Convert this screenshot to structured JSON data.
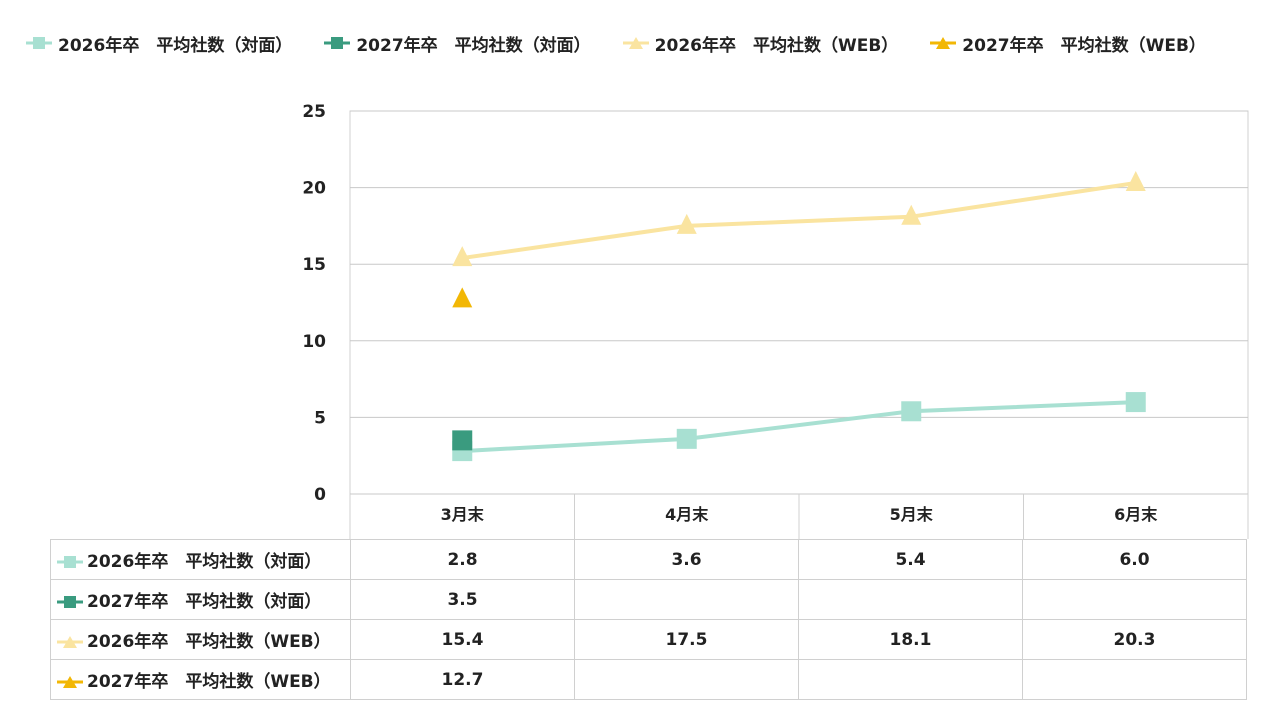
{
  "legend": [
    {
      "label": "2026年卒　平均社数（対面）",
      "color": "#a8e0d2",
      "marker": "square"
    },
    {
      "label": "2027年卒　平均社数（対面）",
      "color": "#3a9b7f",
      "marker": "square"
    },
    {
      "label": "2026年卒　平均社数（WEB）",
      "color": "#fae4a0",
      "marker": "triangle"
    },
    {
      "label": "2027年卒　平均社数（WEB）",
      "color": "#f2b705",
      "marker": "triangle"
    }
  ],
  "chart_data": {
    "type": "line",
    "categories": [
      "3月末",
      "4月末",
      "5月末",
      "6月末"
    ],
    "ylim": [
      0,
      25
    ],
    "yticks": [
      "0",
      "5",
      "10",
      "15",
      "20",
      "25"
    ],
    "grid": true,
    "legend_position": "top",
    "series": [
      {
        "name": "2026年卒　平均社数（対面）",
        "values": [
          2.8,
          3.6,
          5.4,
          6.0
        ],
        "color": "#a8e0d2",
        "marker": "square"
      },
      {
        "name": "2027年卒　平均社数（対面）",
        "values": [
          3.5,
          null,
          null,
          null
        ],
        "color": "#3a9b7f",
        "marker": "square"
      },
      {
        "name": "2026年卒　平均社数（WEB）",
        "values": [
          15.4,
          17.5,
          18.1,
          20.3
        ],
        "color": "#fae4a0",
        "marker": "triangle"
      },
      {
        "name": "2027年卒　平均社数（WEB）",
        "values": [
          12.7,
          null,
          null,
          null
        ],
        "color": "#f2b705",
        "marker": "triangle"
      }
    ]
  },
  "table": {
    "rows": [
      {
        "label": "2026年卒　平均社数（対面）",
        "values": [
          "2.8",
          "3.6",
          "5.4",
          "6.0"
        ]
      },
      {
        "label": "2027年卒　平均社数（対面）",
        "values": [
          "3.5",
          "",
          "",
          ""
        ]
      },
      {
        "label": "2026年卒　平均社数（WEB）",
        "values": [
          "15.4",
          "17.5",
          "18.1",
          "20.3"
        ]
      },
      {
        "label": "2027年卒　平均社数（WEB）",
        "values": [
          "12.7",
          "",
          "",
          ""
        ]
      }
    ]
  }
}
